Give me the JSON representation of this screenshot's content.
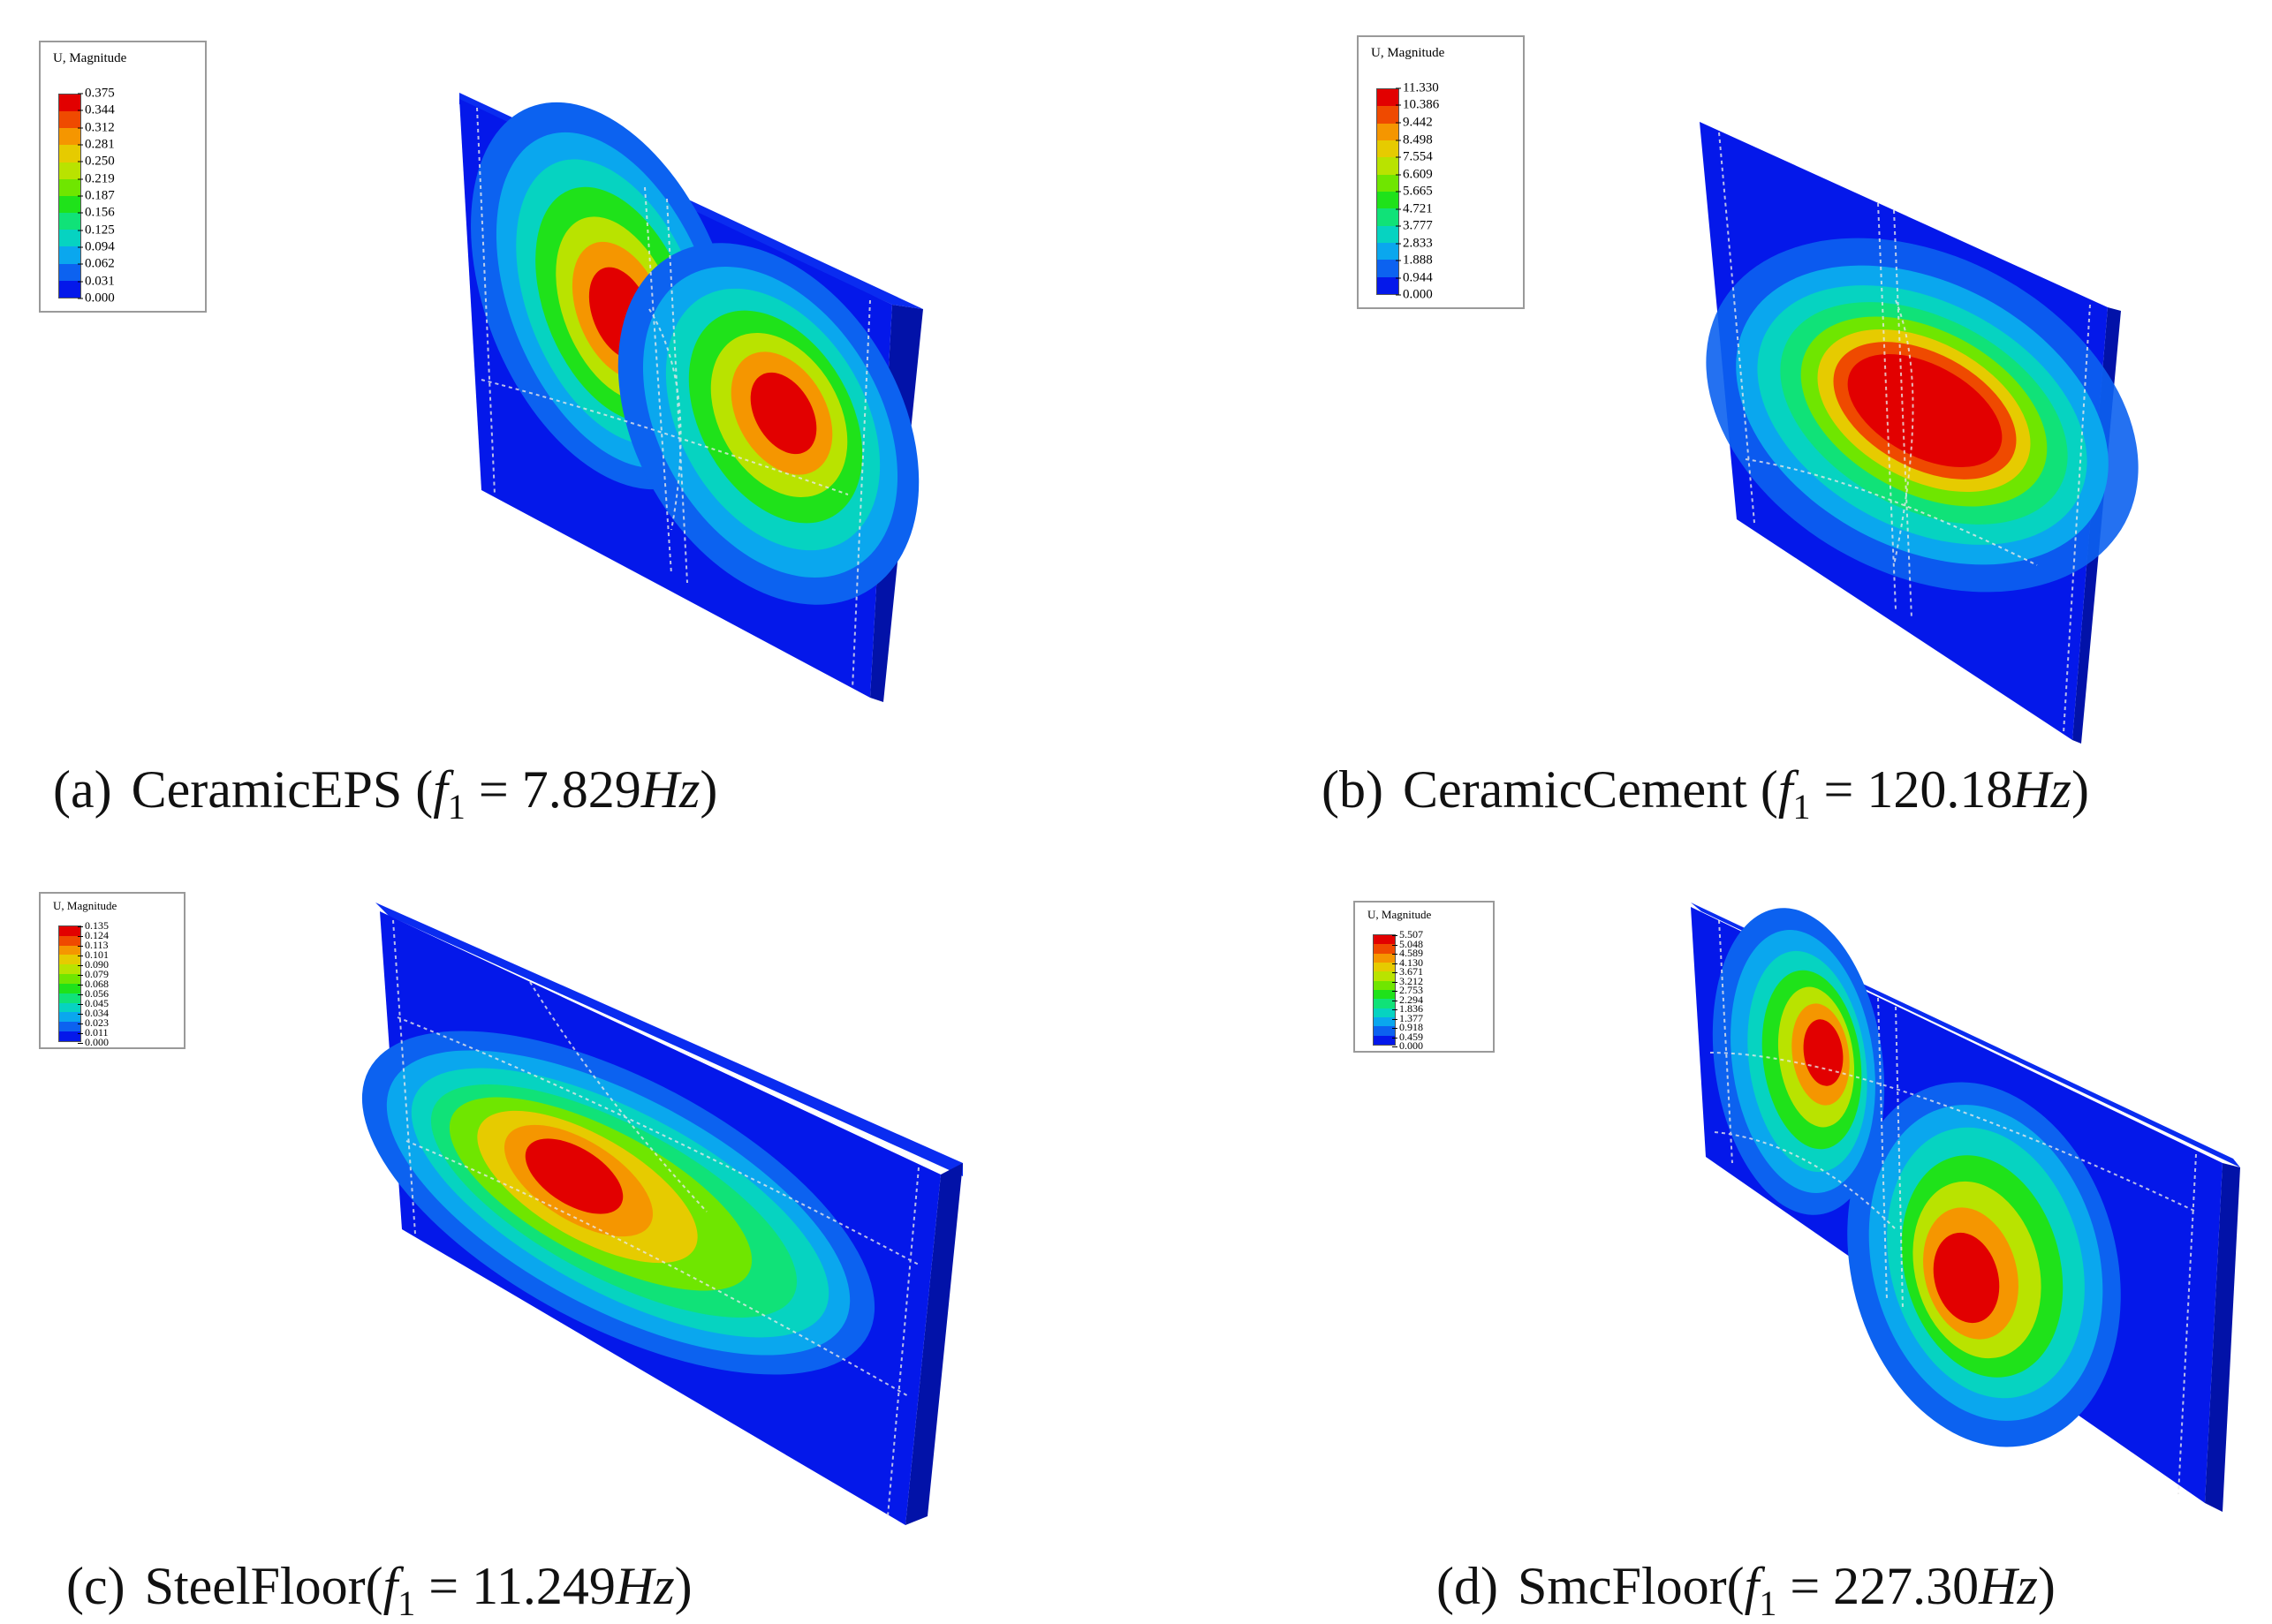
{
  "colors": {
    "scale": [
      "#e20000",
      "#ef4a00",
      "#f59600",
      "#e6cb00",
      "#b9e300",
      "#6fe600",
      "#1fe21a",
      "#10e278",
      "#06d3c1",
      "#0aa7ee",
      "#0c62f0",
      "#0418ea"
    ],
    "plate": "#0418ea",
    "plate_side": "#0212a8"
  },
  "panels": [
    {
      "legend": {
        "title": "U, Magnitude",
        "values": [
          "0.375",
          "0.344",
          "0.312",
          "0.281",
          "0.250",
          "0.219",
          "0.187",
          "0.156",
          "0.125",
          "0.094",
          "0.062",
          "0.031",
          "0.000"
        ]
      },
      "caption": {
        "label": "(a)",
        "name": "CeramicEPS",
        "open": "(",
        "f": "f",
        "sub": "1",
        "eq": " = 7.829",
        "unit": "Hz",
        "close": ")"
      }
    },
    {
      "legend": {
        "title": "U, Magnitude",
        "values": [
          "11.330",
          "10.386",
          "9.442",
          "8.498",
          "7.554",
          "6.609",
          "5.665",
          "4.721",
          "3.777",
          "2.833",
          "1.888",
          "0.944",
          "0.000"
        ]
      },
      "caption": {
        "label": "(b)",
        "name": "CeramicCement",
        "open": "(",
        "f": "f",
        "sub": "1",
        "eq": " = 120.18",
        "unit": "Hz",
        "close": ")"
      }
    },
    {
      "legend": {
        "title": "U, Magnitude",
        "values": [
          "0.135",
          "0.124",
          "0.113",
          "0.101",
          "0.090",
          "0.079",
          "0.068",
          "0.056",
          "0.045",
          "0.034",
          "0.023",
          "0.011",
          "0.000"
        ]
      },
      "caption": {
        "label": "(c)",
        "name": "SteelFloor",
        "open": "(",
        "f": "f",
        "sub": "1",
        "eq": " = 11.249",
        "unit": "Hz",
        "close": ")"
      }
    },
    {
      "legend": {
        "title": "U, Magnitude",
        "values": [
          "5.507",
          "5.048",
          "4.589",
          "4.130",
          "3.671",
          "3.212",
          "2.753",
          "2.294",
          "1.836",
          "1.377",
          "0.918",
          "0.459",
          "0.000"
        ]
      },
      "caption": {
        "label": "(d)",
        "name": "SmcFloor",
        "open": "(",
        "f": "f",
        "sub": "1",
        "eq": " = 227.30",
        "unit": "Hz",
        "close": ")"
      }
    }
  ]
}
